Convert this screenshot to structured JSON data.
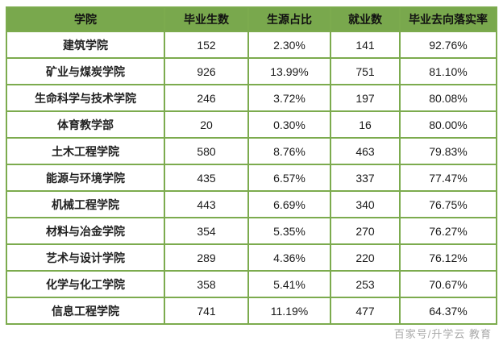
{
  "table": {
    "columns": [
      "学院",
      "毕业生数",
      "生源占比",
      "就业数",
      "毕业去向落实率"
    ],
    "rows": [
      [
        "建筑学院",
        "152",
        "2.30%",
        "141",
        "92.76%"
      ],
      [
        "矿业与煤炭学院",
        "926",
        "13.99%",
        "751",
        "81.10%"
      ],
      [
        "生命科学与技术学院",
        "246",
        "3.72%",
        "197",
        "80.08%"
      ],
      [
        "体育教学部",
        "20",
        "0.30%",
        "16",
        "80.00%"
      ],
      [
        "土木工程学院",
        "580",
        "8.76%",
        "463",
        "79.83%"
      ],
      [
        "能源与环境学院",
        "435",
        "6.57%",
        "337",
        "77.47%"
      ],
      [
        "机械工程学院",
        "443",
        "6.69%",
        "340",
        "76.75%"
      ],
      [
        "材料与冶金学院",
        "354",
        "5.35%",
        "270",
        "76.27%"
      ],
      [
        "艺术与设计学院",
        "289",
        "4.36%",
        "220",
        "76.12%"
      ],
      [
        "化学与化工学院",
        "358",
        "5.41%",
        "253",
        "70.67%"
      ],
      [
        "信息工程学院",
        "741",
        "11.19%",
        "477",
        "64.37%"
      ]
    ]
  },
  "chart_data": {
    "type": "table",
    "title": "",
    "categories": [
      "建筑学院",
      "矿业与煤炭学院",
      "生命科学与技术学院",
      "体育教学部",
      "土木工程学院",
      "能源与环境学院",
      "机械工程学院",
      "材料与冶金学院",
      "艺术与设计学院",
      "化学与化工学院",
      "信息工程学院"
    ],
    "series": [
      {
        "name": "毕业生数",
        "values": [
          152,
          926,
          246,
          20,
          580,
          435,
          443,
          354,
          289,
          358,
          741
        ]
      },
      {
        "name": "生源占比",
        "values": [
          "2.30%",
          "13.99%",
          "3.72%",
          "0.30%",
          "8.76%",
          "6.57%",
          "6.69%",
          "5.35%",
          "4.36%",
          "5.41%",
          "11.19%"
        ]
      },
      {
        "name": "就业数",
        "values": [
          141,
          751,
          197,
          16,
          463,
          337,
          340,
          270,
          220,
          253,
          477
        ]
      },
      {
        "name": "毕业去向落实率",
        "values": [
          "92.76%",
          "81.10%",
          "80.08%",
          "80.00%",
          "79.83%",
          "77.47%",
          "76.75%",
          "76.27%",
          "76.12%",
          "70.67%",
          "64.37%"
        ]
      }
    ]
  },
  "watermark": {
    "text": "百家号/升学云 教育"
  },
  "colors": {
    "header_bg": "#79a84d",
    "border": "#7cab4e",
    "header_text": "#111111",
    "cell_text": "#1a1a1a"
  }
}
